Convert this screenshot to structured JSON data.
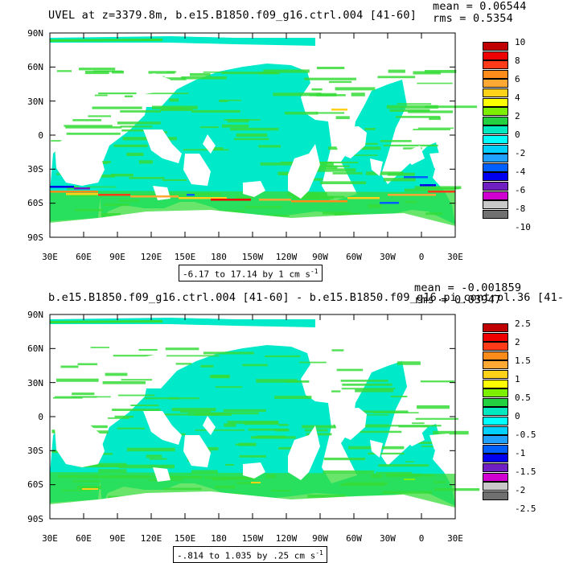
{
  "panels": [
    {
      "title": "UVEL at z=3379.8m, b.e15.B1850.f09_g16.ctrl.004 [41-60]",
      "mean": "mean = 0.06544",
      "rms": "rms = 0.5354",
      "range_text": "-6.17 to 17.14 by 1 cm s",
      "range_sup": "-1",
      "colorbar_labels": [
        "10",
        "8",
        "6",
        "4",
        "2",
        "0",
        "-2",
        "-4",
        "-6",
        "-8",
        "-10"
      ],
      "highlight": "strong"
    },
    {
      "title": "b.e15.B1850.f09_g16.ctrl.004 [41-60] - b.e15.B1850.f09_g16.pi_control.36 [41-",
      "mean": "mean = -0.001859",
      "rms": "rms = 0.03947",
      "range_text": "-.814 to 1.035 by .25 cm s",
      "range_sup": "-1",
      "colorbar_labels": [
        "2.5",
        "2",
        "1.5",
        "1",
        "0.5",
        "0",
        "-0.5",
        "-1",
        "-1.5",
        "-2",
        "-2.5"
      ],
      "highlight": "weak"
    }
  ],
  "axes": {
    "y_labels": [
      "90N",
      "60N",
      "30N",
      "0",
      "30S",
      "60S",
      "90S"
    ],
    "x_labels": [
      "30E",
      "60E",
      "90E",
      "120E",
      "150E",
      "180",
      "150W",
      "120W",
      "90W",
      "60W",
      "30W",
      "0",
      "30E"
    ]
  },
  "colors": {
    "colorbar": [
      "#c00000",
      "#ee0000",
      "#ff3b1a",
      "#ff8c1a",
      "#ffa833",
      "#ffd21a",
      "#ffff00",
      "#7cf000",
      "#22d040",
      "#00e8c0",
      "#00ffff",
      "#00d0ff",
      "#20a0ff",
      "#0060ff",
      "#0000ee",
      "#7020c0",
      "#d000d0",
      "#c8c8c8",
      "#707070"
    ],
    "ocean_main": "#00eaca",
    "ocean_alt": "#36dc38",
    "land": "#ffffff"
  }
}
